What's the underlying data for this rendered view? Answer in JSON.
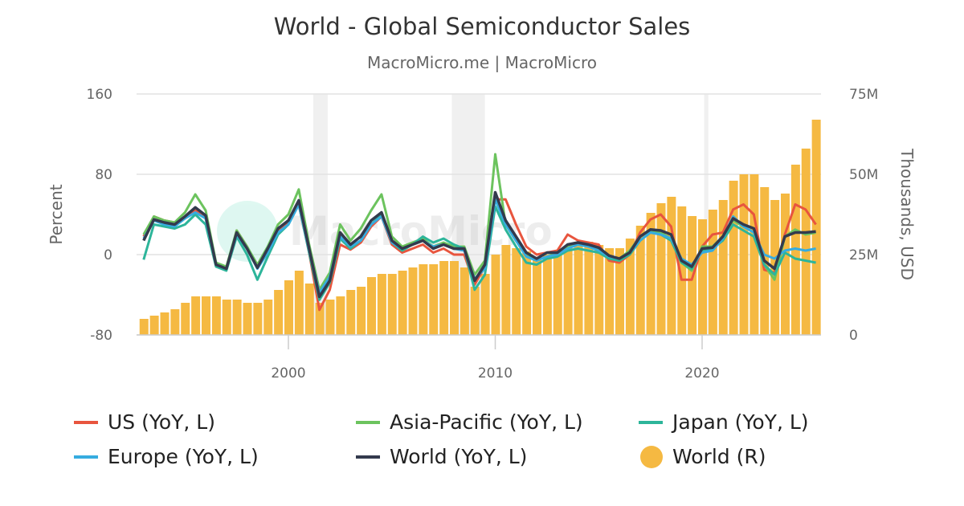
{
  "chart_data": {
    "type": "line+bar",
    "title": "World - Global Semiconductor Sales",
    "subtitle": "MacroMicro.me | MacroMicro",
    "ylabel_left": "Percent",
    "ylabel_right": "Thousands, USD",
    "ylim_left": [
      -80,
      160
    ],
    "ylim_right": [
      0,
      75
    ],
    "yticks_left": [
      "160",
      "80",
      "0",
      "-80"
    ],
    "yticks_right": [
      "75M",
      "50M",
      "25M",
      "0"
    ],
    "xticks": [
      "2000",
      "2010",
      "2020"
    ],
    "xlim": [
      1993,
      2025.7
    ],
    "recessions": [
      [
        2001.2,
        2001.9
      ],
      [
        2007.9,
        2009.5
      ],
      [
        2020.1,
        2020.3
      ]
    ],
    "x": [
      1993,
      1993.5,
      1994,
      1994.5,
      1995,
      1995.5,
      1996,
      1996.5,
      1997,
      1997.5,
      1998,
      1998.5,
      1999,
      1999.5,
      2000,
      2000.5,
      2001,
      2001.5,
      2002,
      2002.5,
      2003,
      2003.5,
      2004,
      2004.5,
      2005,
      2005.5,
      2006,
      2006.5,
      2007,
      2007.5,
      2008,
      2008.5,
      2009,
      2009.5,
      2010,
      2010.5,
      2011,
      2011.5,
      2012,
      2012.5,
      2013,
      2013.5,
      2014,
      2014.5,
      2015,
      2015.5,
      2016,
      2016.5,
      2017,
      2017.5,
      2018,
      2018.5,
      2019,
      2019.5,
      2020,
      2020.5,
      2021,
      2021.5,
      2022,
      2022.5,
      2023,
      2023.5,
      2024,
      2024.5,
      2025,
      2025.5
    ],
    "series": [
      {
        "name": "US (YoY, L)",
        "type": "line",
        "axis": "left",
        "color": "#e8553e",
        "values": [
          18,
          38,
          34,
          32,
          36,
          44,
          36,
          -10,
          -14,
          24,
          8,
          -12,
          6,
          24,
          32,
          50,
          2,
          -55,
          -35,
          10,
          5,
          12,
          28,
          38,
          10,
          2,
          6,
          10,
          2,
          6,
          0,
          0,
          -30,
          -12,
          55,
          55,
          30,
          8,
          0,
          2,
          4,
          20,
          14,
          12,
          10,
          -6,
          -8,
          0,
          22,
          35,
          40,
          28,
          -25,
          -25,
          8,
          20,
          22,
          45,
          50,
          40,
          -15,
          -18,
          20,
          50,
          45,
          30
        ]
      },
      {
        "name": "Asia-Pacific (YoY, L)",
        "type": "line",
        "axis": "left",
        "color": "#6cc35e",
        "values": [
          20,
          38,
          34,
          32,
          42,
          60,
          44,
          -8,
          -12,
          24,
          8,
          -10,
          8,
          30,
          40,
          65,
          10,
          -35,
          -18,
          30,
          14,
          26,
          44,
          60,
          18,
          8,
          12,
          16,
          8,
          12,
          8,
          8,
          -20,
          -6,
          100,
          30,
          14,
          0,
          -4,
          2,
          0,
          8,
          10,
          8,
          5,
          -2,
          -4,
          4,
          18,
          24,
          22,
          16,
          -8,
          -16,
          8,
          8,
          18,
          34,
          28,
          22,
          -10,
          -25,
          18,
          25,
          20,
          22
        ]
      },
      {
        "name": "Japan (YoY, L)",
        "type": "line",
        "axis": "left",
        "color": "#2db59a",
        "values": [
          -5,
          30,
          28,
          26,
          30,
          40,
          30,
          -12,
          -16,
          18,
          0,
          -25,
          -2,
          20,
          30,
          50,
          2,
          -45,
          -28,
          16,
          6,
          14,
          30,
          40,
          12,
          4,
          10,
          18,
          12,
          16,
          10,
          6,
          -35,
          -20,
          48,
          25,
          8,
          -8,
          -10,
          -4,
          -2,
          4,
          6,
          4,
          2,
          -4,
          -6,
          0,
          14,
          22,
          20,
          14,
          -8,
          -14,
          4,
          6,
          14,
          30,
          24,
          18,
          -10,
          -20,
          2,
          -4,
          -6,
          -8
        ]
      },
      {
        "name": "Europe (YoY, L)",
        "type": "line",
        "axis": "left",
        "color": "#36ace0",
        "values": [
          16,
          34,
          30,
          28,
          36,
          42,
          36,
          -10,
          -14,
          20,
          6,
          -14,
          2,
          22,
          30,
          50,
          4,
          -38,
          -22,
          18,
          8,
          14,
          30,
          38,
          12,
          6,
          10,
          14,
          8,
          10,
          6,
          4,
          -24,
          -14,
          55,
          30,
          14,
          -2,
          -6,
          -2,
          0,
          6,
          10,
          8,
          4,
          -2,
          -4,
          2,
          14,
          22,
          20,
          16,
          -4,
          -10,
          2,
          4,
          16,
          38,
          28,
          22,
          0,
          -4,
          4,
          6,
          4,
          6
        ]
      },
      {
        "name": "World (YoY, L)",
        "type": "line",
        "axis": "left",
        "color": "#333a4d",
        "values": [
          14,
          35,
          32,
          30,
          38,
          47,
          39,
          -10,
          -14,
          22,
          6,
          -13,
          6,
          26,
          34,
          54,
          6,
          -42,
          -26,
          22,
          10,
          18,
          34,
          42,
          14,
          6,
          10,
          14,
          6,
          10,
          6,
          6,
          -26,
          -10,
          62,
          34,
          18,
          2,
          -4,
          2,
          2,
          10,
          12,
          10,
          7,
          -1,
          -4,
          2,
          18,
          25,
          24,
          20,
          -6,
          -12,
          6,
          7,
          18,
          36,
          30,
          26,
          -6,
          -14,
          18,
          22,
          22,
          23
        ]
      },
      {
        "name": "World (R)",
        "type": "bar",
        "axis": "right",
        "unit": "M",
        "color": "#f5b942",
        "values": [
          5,
          6,
          7,
          8,
          10,
          12,
          12,
          12,
          11,
          11,
          10,
          10,
          11,
          14,
          17,
          20,
          16,
          10,
          11,
          12,
          14,
          15,
          18,
          19,
          19,
          20,
          21,
          22,
          22,
          23,
          23,
          21,
          15,
          19,
          25,
          28,
          27,
          26,
          24,
          25,
          25,
          27,
          29,
          29,
          28,
          27,
          27,
          30,
          34,
          38,
          41,
          43,
          40,
          37,
          36,
          39,
          42,
          48,
          50,
          50,
          46,
          42,
          44,
          53,
          58,
          67
        ]
      }
    ],
    "legend_position": "bottom",
    "legend_order": [
      0,
      1,
      2,
      3,
      4,
      5
    ]
  },
  "watermark": "MacroMicro"
}
